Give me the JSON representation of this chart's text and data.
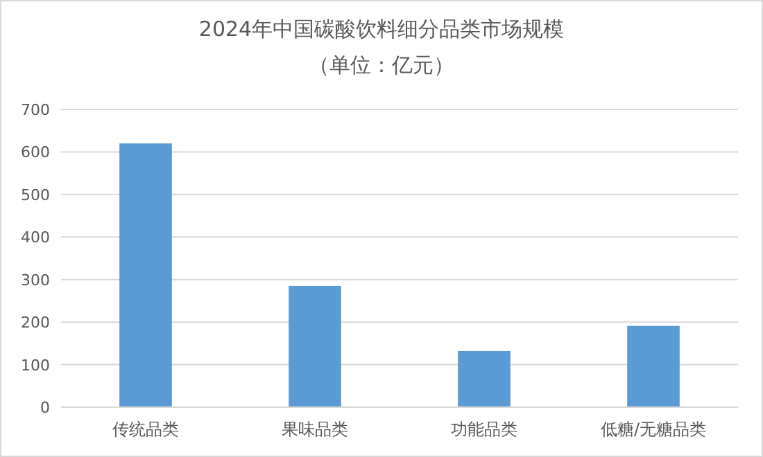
{
  "chart_data": {
    "type": "bar",
    "title": "2024年中国碳酸饮料细分品类市场规模",
    "subtitle": "（单位：亿元）",
    "categories": [
      "传统品类",
      "果味品类",
      "功能品类",
      "低糖/无糖品类"
    ],
    "values": [
      620,
      285,
      132,
      191
    ],
    "color": "#5b9bd5",
    "ylim": [
      0,
      700
    ],
    "yticks": [
      0,
      100,
      200,
      300,
      400,
      500,
      600,
      700
    ],
    "grid": "y"
  }
}
